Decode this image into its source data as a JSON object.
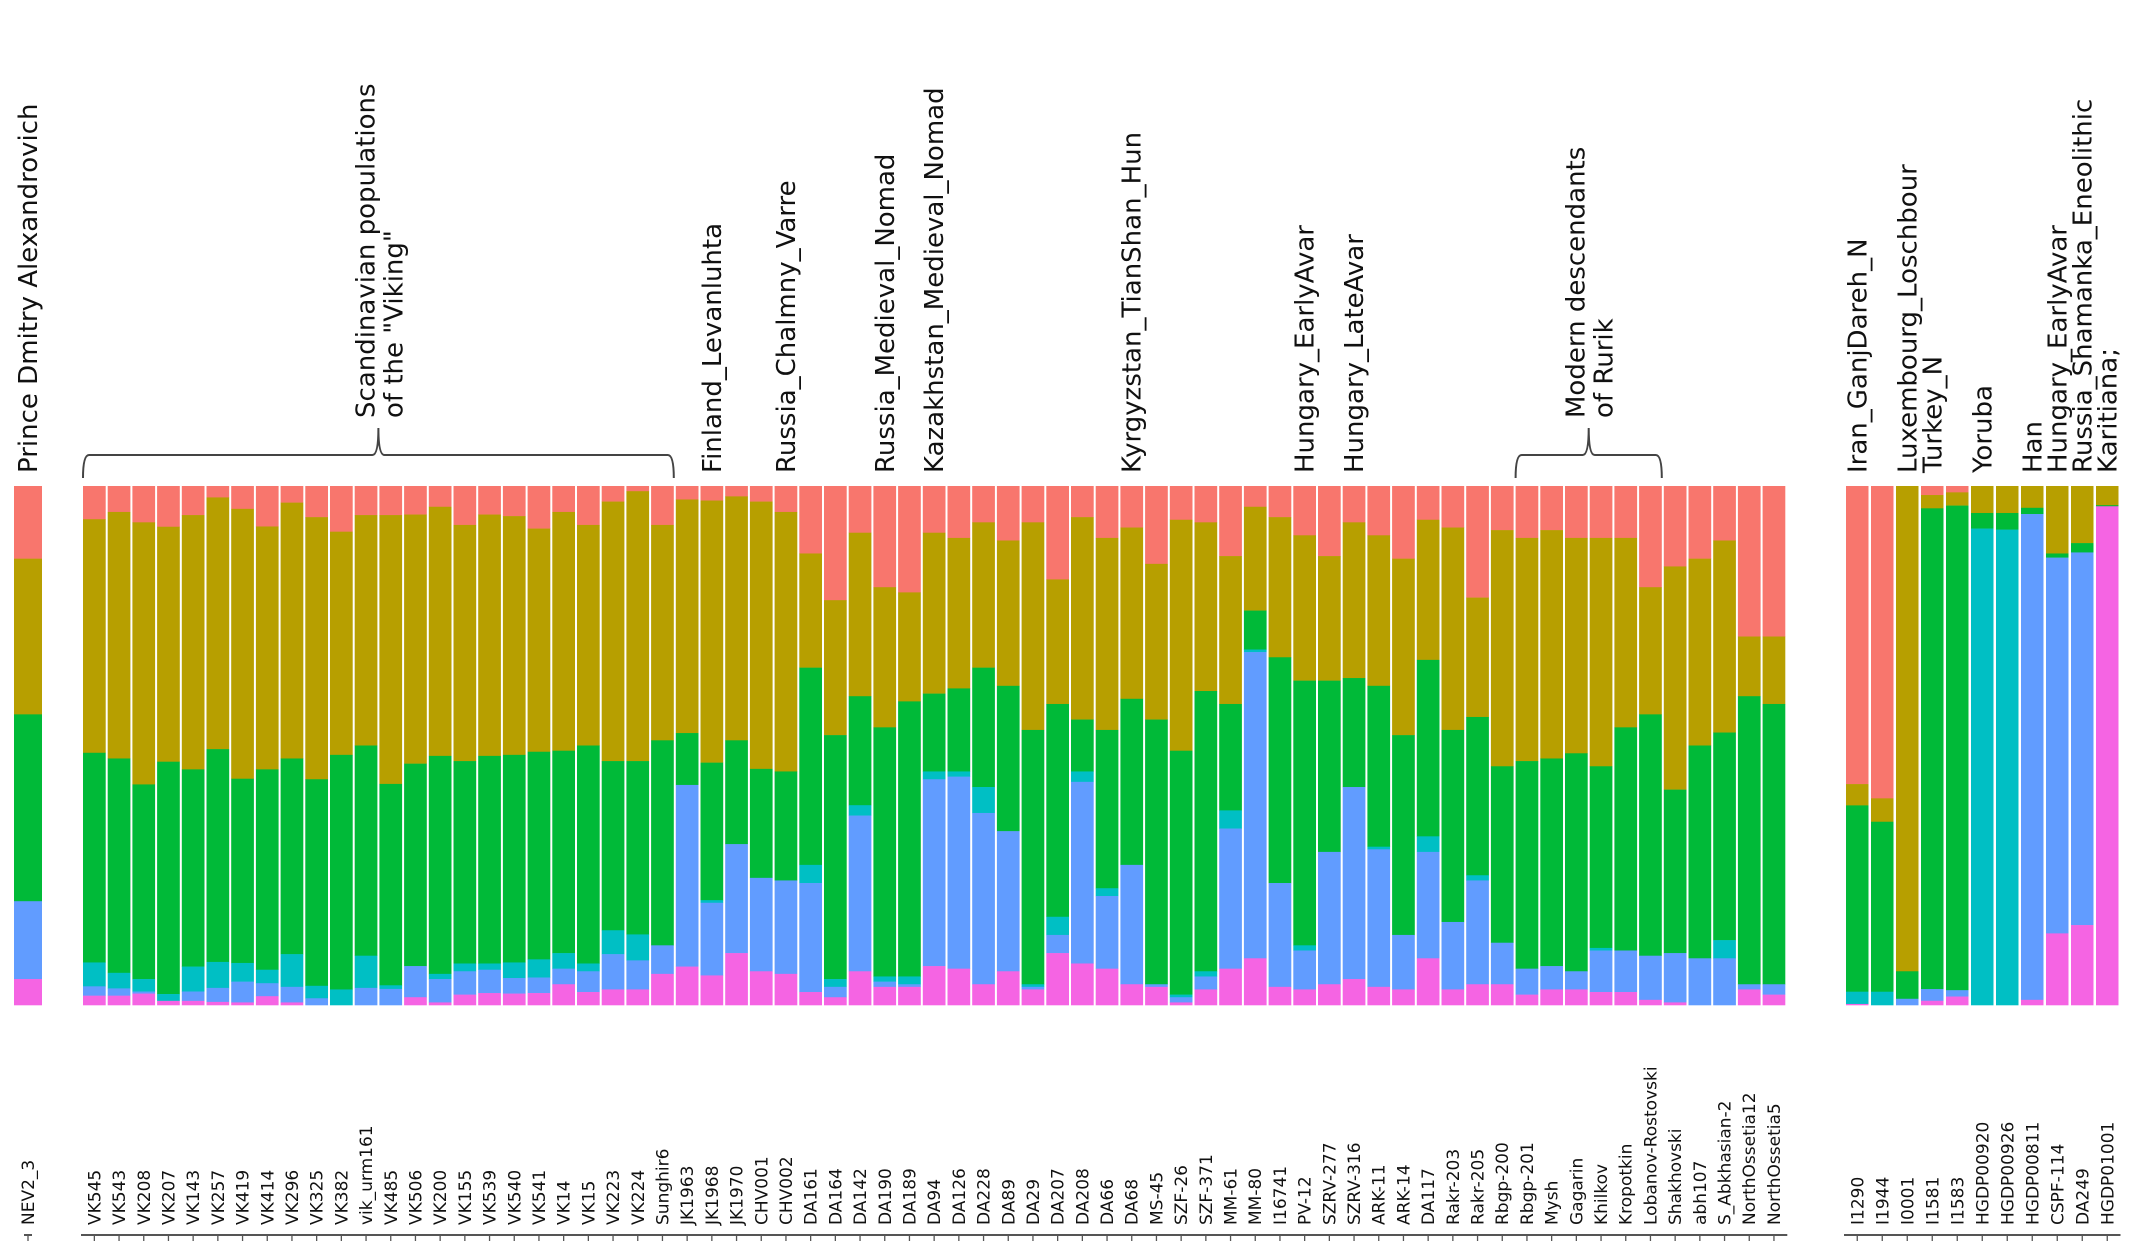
{
  "chart_data": {
    "type": "bar",
    "stacked": true,
    "normalized": true,
    "ylim": [
      0,
      1
    ],
    "grid": false,
    "legend": "none",
    "component_names": [
      "K1",
      "K2",
      "K3",
      "K4",
      "K5",
      "K6"
    ],
    "component_colors": [
      "#F8766D",
      "#B79F00",
      "#00BA38",
      "#00BFC4",
      "#619CFF",
      "#F564E3"
    ],
    "panels": [
      {
        "name": "target",
        "top_labels": [
          {
            "text": "Prince Dmitry Alexandrovich",
            "bar_index": 0
          }
        ],
        "samples": [
          {
            "id": "NEV2_3",
            "values": [
              0.14,
              0.3,
              0.36,
              0.0,
              0.15,
              0.05
            ]
          }
        ]
      },
      {
        "name": "reference-main",
        "brackets": [
          {
            "lines": [
              "Scandinavian populations",
              "of the \"Viking\""
            ],
            "from": 0,
            "to": 23
          },
          {
            "lines": [
              "Modern descendants",
              "of Rurik"
            ],
            "from": 58,
            "to": 63
          }
        ],
        "top_labels": [
          {
            "text": "Finland_Levanluhta",
            "bar_index": 25
          },
          {
            "text": "Russia_Chalmny_Varre",
            "bar_index": 28
          },
          {
            "text": "Russia_Medieval_Nomad",
            "bar_index": 32
          },
          {
            "text": "Kazakhstan_Medieval_Nomad",
            "bar_index": 34
          },
          {
            "text": "Kyrgyzstan_TianShan_Hun",
            "bar_index": 42
          },
          {
            "text": "Hungary_EarlyAvar",
            "bar_index": 49
          },
          {
            "text": "Hungary_LateAvar",
            "bar_index": 51
          }
        ],
        "samples": [
          {
            "id": "VK545",
            "values": [
              0.064,
              0.45,
              0.404,
              0.046,
              0.018,
              0.018
            ]
          },
          {
            "id": "VK543",
            "values": [
              0.05,
              0.475,
              0.413,
              0.03,
              0.014,
              0.018
            ]
          },
          {
            "id": "VK208",
            "values": [
              0.07,
              0.505,
              0.375,
              0.024,
              0.004,
              0.022
            ]
          },
          {
            "id": "VK207",
            "values": [
              0.078,
              0.45,
              0.445,
              0.013,
              0.0,
              0.008
            ]
          },
          {
            "id": "VK143",
            "values": [
              0.056,
              0.49,
              0.38,
              0.048,
              0.018,
              0.008
            ]
          },
          {
            "id": "VK257",
            "values": [
              0.022,
              0.485,
              0.41,
              0.05,
              0.027,
              0.006
            ]
          },
          {
            "id": "VK419",
            "values": [
              0.044,
              0.52,
              0.355,
              0.036,
              0.04,
              0.005
            ]
          },
          {
            "id": "VK414",
            "values": [
              0.078,
              0.468,
              0.386,
              0.026,
              0.025,
              0.017
            ]
          },
          {
            "id": "VK296",
            "values": [
              0.032,
              0.493,
              0.377,
              0.063,
              0.03,
              0.005
            ]
          },
          {
            "id": "VK325",
            "values": [
              0.06,
              0.505,
              0.398,
              0.024,
              0.013,
              0.0
            ]
          },
          {
            "id": "VK382",
            "values": [
              0.088,
              0.43,
              0.452,
              0.03,
              0.0,
              0.0
            ]
          },
          {
            "id": "vik_urm161",
            "values": [
              0.056,
              0.444,
              0.405,
              0.062,
              0.033,
              0.0
            ]
          },
          {
            "id": "VK485",
            "values": [
              0.056,
              0.518,
              0.388,
              0.007,
              0.031,
              0.0
            ]
          },
          {
            "id": "VK506",
            "values": [
              0.055,
              0.48,
              0.39,
              0.0,
              0.06,
              0.015
            ]
          },
          {
            "id": "VK200",
            "values": [
              0.04,
              0.48,
              0.42,
              0.01,
              0.045,
              0.005
            ]
          },
          {
            "id": "VK155",
            "values": [
              0.075,
              0.455,
              0.39,
              0.015,
              0.045,
              0.02
            ]
          },
          {
            "id": "VK539",
            "values": [
              0.055,
              0.465,
              0.4,
              0.012,
              0.045,
              0.023
            ]
          },
          {
            "id": "VK540",
            "values": [
              0.058,
              0.46,
              0.4,
              0.03,
              0.03,
              0.022
            ]
          },
          {
            "id": "VK541",
            "values": [
              0.082,
              0.43,
              0.4,
              0.035,
              0.03,
              0.023
            ]
          },
          {
            "id": "VK14",
            "values": [
              0.05,
              0.46,
              0.39,
              0.03,
              0.03,
              0.04
            ]
          },
          {
            "id": "VK15",
            "values": [
              0.075,
              0.425,
              0.42,
              0.015,
              0.04,
              0.025
            ]
          },
          {
            "id": "VK223",
            "values": [
              0.03,
              0.5,
              0.326,
              0.046,
              0.068,
              0.03
            ]
          },
          {
            "id": "VK224",
            "values": [
              0.01,
              0.52,
              0.334,
              0.05,
              0.056,
              0.03
            ]
          },
          {
            "id": "Sunghir6",
            "values": [
              0.075,
              0.415,
              0.395,
              0.0,
              0.055,
              0.06
            ]
          },
          {
            "id": "JK1963",
            "values": [
              0.026,
              0.45,
              0.1,
              0.0,
              0.35,
              0.074
            ]
          },
          {
            "id": "JK1968",
            "values": [
              0.028,
              0.505,
              0.265,
              0.005,
              0.14,
              0.057
            ]
          },
          {
            "id": "JK1970",
            "values": [
              0.02,
              0.47,
              0.2,
              0.0,
              0.21,
              0.1
            ]
          },
          {
            "id": "CHV001",
            "values": [
              0.03,
              0.515,
              0.21,
              0.0,
              0.18,
              0.065
            ]
          },
          {
            "id": "CHV002",
            "values": [
              0.05,
              0.5,
              0.21,
              0.0,
              0.18,
              0.06
            ]
          },
          {
            "id": "DA161",
            "values": [
              0.13,
              0.22,
              0.38,
              0.035,
              0.21,
              0.025
            ]
          },
          {
            "id": "DA164",
            "values": [
              0.22,
              0.26,
              0.47,
              0.015,
              0.02,
              0.015
            ]
          },
          {
            "id": "DA142",
            "values": [
              0.09,
              0.315,
              0.21,
              0.02,
              0.3,
              0.065
            ]
          },
          {
            "id": "DA190",
            "values": [
              0.195,
              0.27,
              0.48,
              0.01,
              0.01,
              0.035
            ]
          },
          {
            "id": "DA189",
            "values": [
              0.205,
              0.21,
              0.53,
              0.015,
              0.005,
              0.035
            ]
          },
          {
            "id": "DA94",
            "values": [
              0.09,
              0.31,
              0.15,
              0.015,
              0.36,
              0.075
            ]
          },
          {
            "id": "DA126",
            "values": [
              0.1,
              0.29,
              0.16,
              0.01,
              0.37,
              0.07
            ]
          },
          {
            "id": "DA228",
            "values": [
              0.07,
              0.28,
              0.23,
              0.05,
              0.33,
              0.04
            ]
          },
          {
            "id": "DA89",
            "values": [
              0.105,
              0.28,
              0.28,
              0.0,
              0.27,
              0.065
            ]
          },
          {
            "id": "DA29",
            "values": [
              0.07,
              0.4,
              0.49,
              0.005,
              0.005,
              0.03
            ]
          },
          {
            "id": "DA207",
            "values": [
              0.18,
              0.24,
              0.41,
              0.035,
              0.035,
              0.1
            ]
          },
          {
            "id": "DA208",
            "values": [
              0.06,
              0.39,
              0.1,
              0.02,
              0.35,
              0.08
            ]
          },
          {
            "id": "DA66",
            "values": [
              0.1,
              0.37,
              0.305,
              0.015,
              0.14,
              0.07
            ]
          },
          {
            "id": "DA68",
            "values": [
              0.08,
              0.33,
              0.32,
              0.0,
              0.23,
              0.04
            ]
          },
          {
            "id": "MS-45",
            "values": [
              0.15,
              0.3,
              0.51,
              0.0,
              0.005,
              0.035
            ]
          },
          {
            "id": "SZF-26",
            "values": [
              0.065,
              0.445,
              0.47,
              0.005,
              0.01,
              0.005
            ]
          },
          {
            "id": "SZF-371",
            "values": [
              0.07,
              0.325,
              0.54,
              0.01,
              0.025,
              0.03
            ]
          },
          {
            "id": "MM-61",
            "values": [
              0.135,
              0.285,
              0.205,
              0.035,
              0.27,
              0.07
            ]
          },
          {
            "id": "MM-80",
            "values": [
              0.04,
              0.2,
              0.075,
              0.005,
              0.59,
              0.09
            ]
          },
          {
            "id": "I16741",
            "values": [
              0.06,
              0.27,
              0.435,
              0.0,
              0.2,
              0.035
            ]
          },
          {
            "id": "PV-12",
            "values": [
              0.095,
              0.28,
              0.51,
              0.01,
              0.075,
              0.03
            ]
          },
          {
            "id": "SZRV-277",
            "values": [
              0.135,
              0.24,
              0.33,
              0.0,
              0.255,
              0.04
            ]
          },
          {
            "id": "SZRV-316",
            "values": [
              0.07,
              0.3,
              0.21,
              0.0,
              0.37,
              0.05
            ]
          },
          {
            "id": "ARK-11",
            "values": [
              0.095,
              0.29,
              0.31,
              0.005,
              0.265,
              0.035
            ]
          },
          {
            "id": "ARK-14",
            "values": [
              0.14,
              0.34,
              0.385,
              0.0,
              0.105,
              0.03
            ]
          },
          {
            "id": "DA117",
            "values": [
              0.065,
              0.27,
              0.34,
              0.03,
              0.205,
              0.09
            ]
          },
          {
            "id": "Rakr-203",
            "values": [
              0.08,
              0.39,
              0.37,
              0.0,
              0.13,
              0.03
            ]
          },
          {
            "id": "Rakr-205",
            "values": [
              0.215,
              0.23,
              0.305,
              0.01,
              0.2,
              0.04
            ]
          },
          {
            "id": "Rbgp-200",
            "values": [
              0.085,
              0.455,
              0.34,
              0.0,
              0.08,
              0.04
            ]
          },
          {
            "id": "Rbgp-201",
            "values": [
              0.1,
              0.43,
              0.4,
              0.0,
              0.05,
              0.02
            ]
          },
          {
            "id": "Mysh",
            "values": [
              0.085,
              0.44,
              0.4,
              0.0,
              0.045,
              0.03
            ]
          },
          {
            "id": "Gagarin",
            "values": [
              0.1,
              0.415,
              0.42,
              0.0,
              0.035,
              0.03
            ]
          },
          {
            "id": "Khilkov",
            "values": [
              0.1,
              0.44,
              0.35,
              0.005,
              0.08,
              0.025
            ]
          },
          {
            "id": "Kropotkin",
            "values": [
              0.1,
              0.365,
              0.43,
              0.0,
              0.08,
              0.025
            ]
          },
          {
            "id": "Lobanov-Rostovski",
            "values": [
              0.195,
              0.245,
              0.465,
              0.0,
              0.085,
              0.01
            ]
          },
          {
            "id": "Shakhovski",
            "values": [
              0.155,
              0.43,
              0.315,
              0.0,
              0.095,
              0.005
            ]
          },
          {
            "id": "abh107",
            "values": [
              0.14,
              0.36,
              0.41,
              0.0,
              0.09,
              0.0
            ]
          },
          {
            "id": "S_Abkhasian-2",
            "values": [
              0.105,
              0.37,
              0.4,
              0.035,
              0.09,
              0.0
            ]
          },
          {
            "id": "NorthOssetia12",
            "values": [
              0.29,
              0.115,
              0.555,
              0.0,
              0.01,
              0.03
            ]
          },
          {
            "id": "NorthOssetia5",
            "values": [
              0.29,
              0.13,
              0.54,
              0.0,
              0.02,
              0.02
            ]
          }
        ]
      },
      {
        "name": "reference-populations",
        "top_labels": [
          {
            "text": "Iran_GanjDareh_N",
            "bar_index": 0
          },
          {
            "text": "Luxembourg_Loschbour",
            "bar_index": 2
          },
          {
            "text": "Turkey_N",
            "bar_index": 3
          },
          {
            "text": "Yoruba",
            "bar_index": 5
          },
          {
            "text": "Han",
            "bar_index": 7
          },
          {
            "text": "Hungary_EarlyAvar",
            "bar_index": 8
          },
          {
            "text": "Russia_Shamanka_Eneolithic",
            "bar_index": 9
          },
          {
            "text": "Karitiana;",
            "bar_index": 10
          }
        ],
        "samples": [
          {
            "id": "I1290",
            "values": [
              0.56,
              0.04,
              0.35,
              0.023,
              0.0,
              0.002
            ]
          },
          {
            "id": "I1944",
            "values": [
              0.588,
              0.044,
              0.32,
              0.025,
              0.0,
              0.0
            ]
          },
          {
            "id": "I0001",
            "values": [
              0.0,
              0.935,
              0.053,
              0.0,
              0.012,
              0.0
            ]
          },
          {
            "id": "I1581",
            "values": [
              0.017,
              0.025,
              0.905,
              0.0,
              0.022,
              0.008
            ]
          },
          {
            "id": "I1583",
            "values": [
              0.012,
              0.025,
              0.915,
              0.0,
              0.012,
              0.016
            ]
          },
          {
            "id": "HGDP00920",
            "values": [
              0.0,
              0.052,
              0.03,
              0.918,
              0.0,
              0.0
            ]
          },
          {
            "id": "HGDP00926",
            "values": [
              0.0,
              0.052,
              0.032,
              0.916,
              0.0,
              0.0
            ]
          },
          {
            "id": "HGDP00811",
            "values": [
              0.0,
              0.042,
              0.012,
              0.0,
              0.936,
              0.01
            ]
          },
          {
            "id": "CSPF-114",
            "values": [
              0.0,
              0.13,
              0.008,
              0.0,
              0.724,
              0.138
            ]
          },
          {
            "id": "DA249",
            "values": [
              0.0,
              0.11,
              0.018,
              0.0,
              0.718,
              0.154
            ]
          },
          {
            "id": "HGDP01001",
            "values": [
              0.0,
              0.037,
              0.002,
              0.0,
              0.0,
              0.961
            ]
          }
        ]
      }
    ]
  }
}
